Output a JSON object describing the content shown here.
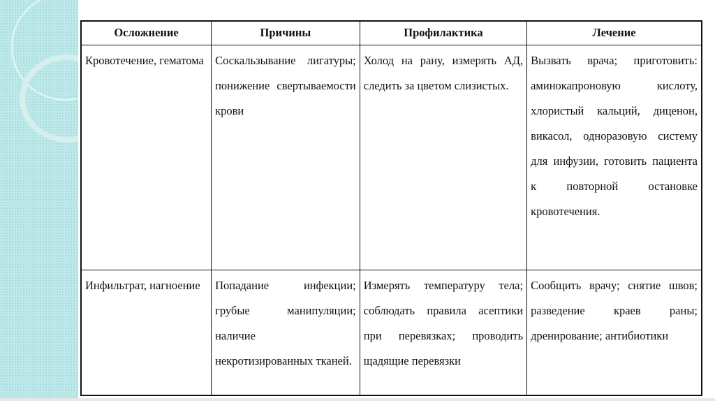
{
  "table": {
    "headers": [
      "Осложнение",
      "Причины",
      "Профилактика",
      "Лечение"
    ],
    "rows": [
      [
        "Кровотечение, гематома",
        "Соскальзывание лигатуры; понижение свертываемости крови",
        "Холод на рану, измерять АД, следить за цветом слизистых.",
        "Вызвать врача; приготовить: аминокапроновую кислоту, хлористый кальций, диценон, викасол, одноразовую систему для инфузии, готовить пациента к повторной остановке кровотечения."
      ],
      [
        "Инфильтрат, нагноение",
        "Попадание инфекции; грубые манипуляции; наличие некротизированных тканей.",
        "Измерять температуру тела; соблюдать правила асептики при перевязках; проводить щадящие перевязки",
        "Сообщить врачу; снятие швов; разведение краев раны; дренирование; антибиотики"
      ]
    ]
  },
  "colors": {
    "background_strip": "#bfe9ea",
    "border": "#111111"
  }
}
